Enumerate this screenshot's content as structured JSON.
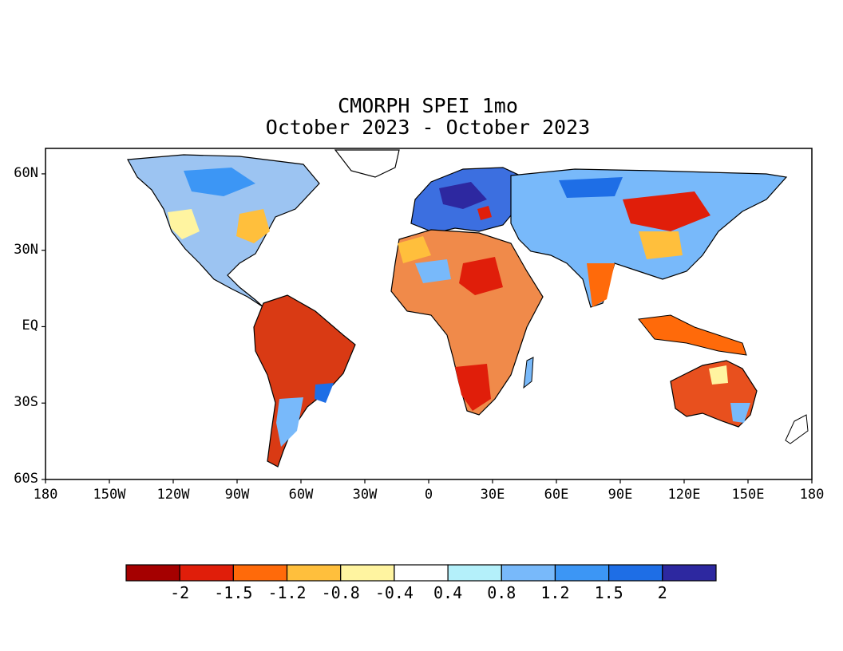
{
  "title": {
    "line1": "CMORPH SPEI 1mo",
    "line2": "October 2023 - October 2023"
  },
  "lat_labels": [
    "60N",
    "30N",
    "EQ",
    "30S",
    "60S"
  ],
  "lon_labels": [
    "180",
    "150W",
    "120W",
    "90W",
    "60W",
    "30W",
    "0",
    "30E",
    "60E",
    "90E",
    "120E",
    "150E",
    "180"
  ],
  "colorbar": {
    "colors": [
      "#a50000",
      "#e01e0a",
      "#ff6a0a",
      "#ffbf3c",
      "#fff4a0",
      "#ffffff",
      "#b4f0fa",
      "#78b9fa",
      "#3c96f5",
      "#1e6ee6",
      "#2d28a0"
    ],
    "labels": [
      "-2",
      "-1.5",
      "-1.2",
      "-0.8",
      "-0.4",
      "0.4",
      "0.8",
      "1.2",
      "1.5",
      "2"
    ]
  },
  "map": {
    "lon_range": [
      -180,
      180
    ],
    "lat_range": [
      -60,
      70
    ]
  }
}
